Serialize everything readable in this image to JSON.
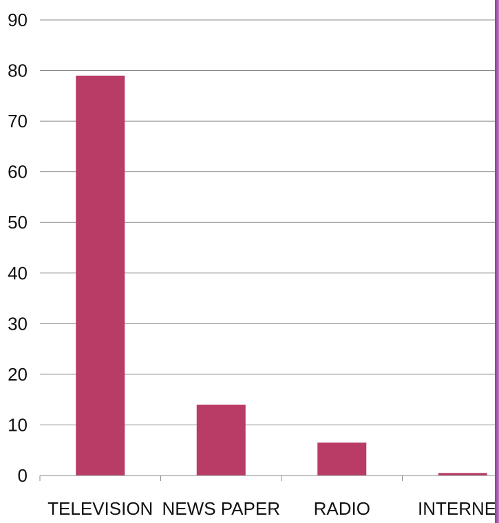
{
  "chart_data": {
    "type": "bar",
    "categories": [
      "TELEVISION",
      "NEWS PAPER",
      "RADIO",
      "INTERNET"
    ],
    "values": [
      79,
      14,
      6.5,
      0.5
    ],
    "title": "",
    "xlabel": "",
    "ylabel": "",
    "ylim": [
      0,
      90
    ],
    "yticks": [
      "0",
      "10",
      "20",
      "30",
      "40",
      "50",
      "60",
      "70",
      "80",
      "90"
    ],
    "grid": true,
    "legend": "none"
  },
  "colors": {
    "bar": "#b93c66",
    "grid": "#888888",
    "axis": "#888888",
    "edge_accent": "#8b3a8f"
  }
}
